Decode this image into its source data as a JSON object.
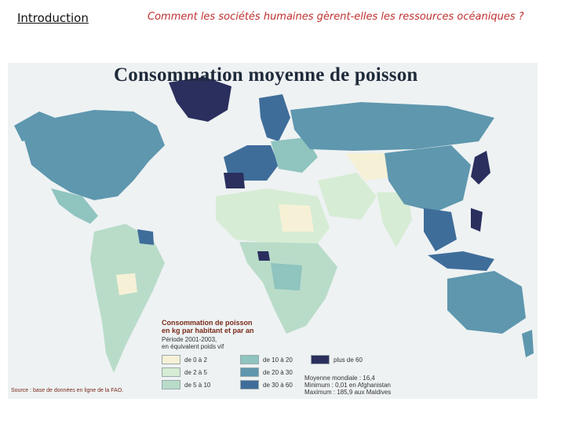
{
  "header": {
    "section": "Introduction",
    "question": "Comment les sociétés humaines gèrent-elles les ressources océaniques ?"
  },
  "map": {
    "title": "Consommation moyenne de poisson",
    "legend": {
      "title_line1": "Consommation de poisson",
      "title_line2": "en kg par habitant et par an",
      "period_line1": "Période 2001-2003,",
      "period_line2": "en équivalent poids vif",
      "classes": [
        {
          "label": "de 0 à 2",
          "color": "#f6f1d6"
        },
        {
          "label": "de 2 à 5",
          "color": "#d6ecd4"
        },
        {
          "label": "de 5 à 10",
          "color": "#b9dcc9"
        },
        {
          "label": "de 10 à 20",
          "color": "#8fc4bf"
        },
        {
          "label": "de 20 à 30",
          "color": "#5e97ae"
        },
        {
          "label": "de 30 à 60",
          "color": "#3f6d9a"
        },
        {
          "label": "plus de 60",
          "color": "#2a2f5e"
        }
      ],
      "stats": {
        "world": "Moyenne mondiale : 16,4",
        "min": "Minimum : 0,01 en Afghanistan",
        "max": "Maximum : 185,9 aux Maldives"
      }
    },
    "source": "Source : base de données en ligne de la FAO."
  }
}
